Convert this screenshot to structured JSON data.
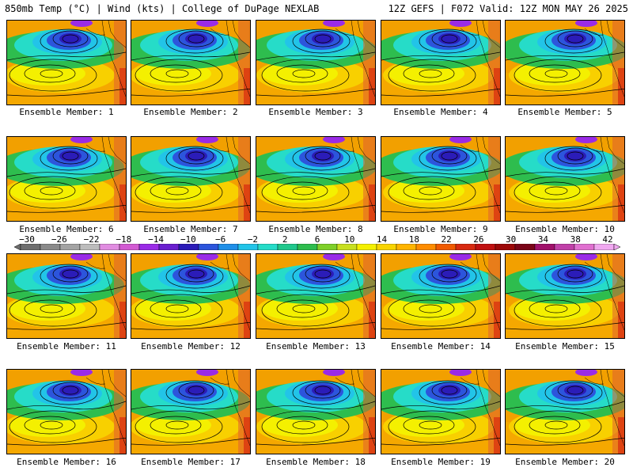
{
  "header": {
    "left": "850mb Temp (°C) | Wind (kts) | College of DuPage NEXLAB",
    "right": "12Z GEFS | F072 Valid: 12Z MON MAY 26 2025"
  },
  "panels": [
    {
      "label": "Ensemble Member: 1"
    },
    {
      "label": "Ensemble Member: 2"
    },
    {
      "label": "Ensemble Member: 3"
    },
    {
      "label": "Ensemble Member: 4"
    },
    {
      "label": "Ensemble Member: 5"
    },
    {
      "label": "Ensemble Member: 6"
    },
    {
      "label": "Ensemble Member: 7"
    },
    {
      "label": "Ensemble Member: 8"
    },
    {
      "label": "Ensemble Member: 9"
    },
    {
      "label": "Ensemble Member: 10"
    },
    {
      "label": "Ensemble Member: 11"
    },
    {
      "label": "Ensemble Member: 12"
    },
    {
      "label": "Ensemble Member: 13"
    },
    {
      "label": "Ensemble Member: 14"
    },
    {
      "label": "Ensemble Member: 15"
    },
    {
      "label": "Ensemble Member: 16"
    },
    {
      "label": "Ensemble Member: 17"
    },
    {
      "label": "Ensemble Member: 18"
    },
    {
      "label": "Ensemble Member: 19"
    },
    {
      "label": "Ensemble Member: 20"
    }
  ],
  "colorbar": {
    "ticks": [
      "−30",
      "−26",
      "−22",
      "−18",
      "−14",
      "−10",
      "−6",
      "−2",
      "2",
      "6",
      "10",
      "14",
      "18",
      "22",
      "26",
      "30",
      "34",
      "38",
      "42"
    ],
    "colors": [
      "#6e6e6e",
      "#8a8a8a",
      "#a3a3a3",
      "#bcbcbc",
      "#e08ce0",
      "#d25ad2",
      "#9a2be6",
      "#6a1fcf",
      "#2b1cb8",
      "#2c55dc",
      "#1f8fe8",
      "#22c4e8",
      "#26dcc8",
      "#20c88c",
      "#2ebd4e",
      "#7fd02a",
      "#c8e020",
      "#f4f000",
      "#f8d400",
      "#ffb400",
      "#ff8c00",
      "#f05a00",
      "#d82a10",
      "#c01010",
      "#9c0808",
      "#7a0418",
      "#a0106a",
      "#c040a8",
      "#e070d0",
      "#f0a8f0"
    ]
  }
}
